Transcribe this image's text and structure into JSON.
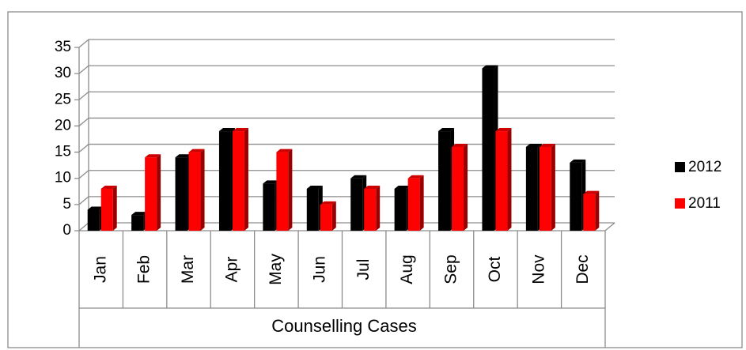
{
  "chart_data": {
    "type": "bar",
    "x_label": "Counselling Cases",
    "categories": [
      "Jan",
      "Feb",
      "Mar",
      "Apr",
      "May",
      "Jun",
      "Jul",
      "Aug",
      "Sep",
      "Oct",
      "Nov",
      "Dec"
    ],
    "series": [
      {
        "name": "2012",
        "color": "#000000",
        "values": [
          4,
          3,
          14,
          19,
          9,
          8,
          10,
          8,
          19,
          31,
          16,
          13
        ]
      },
      {
        "name": "2011",
        "color": "#ff0000",
        "values": [
          8,
          14,
          15,
          19,
          15,
          5,
          8,
          10,
          16,
          19,
          16,
          7
        ]
      }
    ],
    "ylim": [
      0,
      35
    ],
    "yticks": [
      0,
      5,
      10,
      15,
      20,
      25,
      30,
      35
    ],
    "grid": true,
    "legend": "right"
  }
}
